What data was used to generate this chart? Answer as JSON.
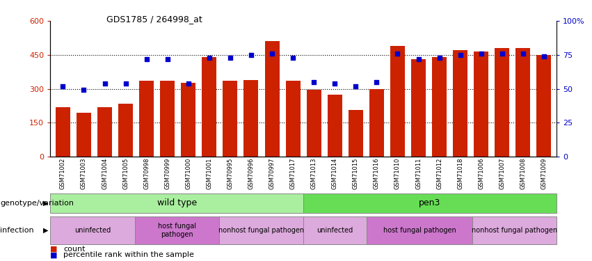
{
  "title": "GDS1785 / 264998_at",
  "samples": [
    "GSM71002",
    "GSM71003",
    "GSM71004",
    "GSM71005",
    "GSM70998",
    "GSM70999",
    "GSM71000",
    "GSM71001",
    "GSM70995",
    "GSM70996",
    "GSM70997",
    "GSM71017",
    "GSM71013",
    "GSM71014",
    "GSM71015",
    "GSM71016",
    "GSM71010",
    "GSM71011",
    "GSM71012",
    "GSM71018",
    "GSM71006",
    "GSM71007",
    "GSM71008",
    "GSM71009"
  ],
  "counts": [
    220,
    195,
    220,
    235,
    335,
    335,
    325,
    440,
    335,
    340,
    510,
    335,
    295,
    275,
    205,
    300,
    490,
    430,
    440,
    470,
    465,
    480,
    480,
    450
  ],
  "percentile_ranks": [
    52,
    49,
    54,
    54,
    72,
    72,
    54,
    73,
    73,
    75,
    76,
    73,
    55,
    54,
    52,
    55,
    76,
    72,
    73,
    75,
    76,
    76,
    76,
    74
  ],
  "bar_color": "#cc2200",
  "dot_color": "#0000cc",
  "ylim_left": [
    0,
    600
  ],
  "ylim_right": [
    0,
    100
  ],
  "yticks_left": [
    0,
    150,
    300,
    450,
    600
  ],
  "yticks_right": [
    0,
    25,
    50,
    75,
    100
  ],
  "ytick_labels_left": [
    "0",
    "150",
    "300",
    "450",
    "600"
  ],
  "ytick_labels_right": [
    "0",
    "25",
    "50",
    "75",
    "100%"
  ],
  "left_tick_color": "#cc2200",
  "right_tick_color": "#0000cc",
  "genotype_groups": [
    {
      "label": "wild type",
      "start": 0,
      "end": 11,
      "color": "#aaeea0"
    },
    {
      "label": "pen3",
      "start": 12,
      "end": 23,
      "color": "#66dd55"
    }
  ],
  "infection_groups": [
    {
      "label": "uninfected",
      "start": 0,
      "end": 3,
      "color": "#ddaadd"
    },
    {
      "label": "host fungal\npathogen",
      "start": 4,
      "end": 7,
      "color": "#cc77cc"
    },
    {
      "label": "nonhost fungal pathogen",
      "start": 8,
      "end": 11,
      "color": "#ddaadd"
    },
    {
      "label": "uninfected",
      "start": 12,
      "end": 14,
      "color": "#ddaadd"
    },
    {
      "label": "host fungal pathogen",
      "start": 15,
      "end": 19,
      "color": "#cc77cc"
    },
    {
      "label": "nonhost fungal pathogen",
      "start": 20,
      "end": 23,
      "color": "#ddaadd"
    }
  ],
  "legend_count_label": "count",
  "legend_pct_label": "percentile rank within the sample",
  "genotype_label": "genotype/variation",
  "infection_label": "infection",
  "hgrid_vals": [
    150,
    300,
    450
  ]
}
